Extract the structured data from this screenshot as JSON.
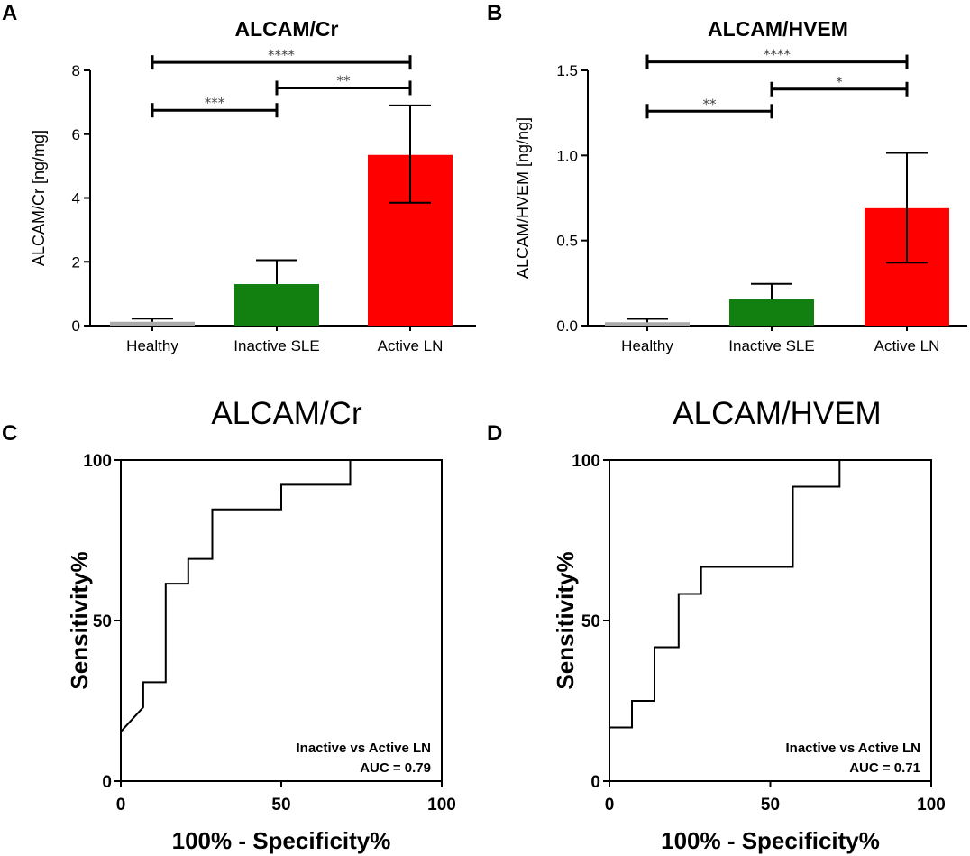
{
  "chart_data": [
    {
      "panel": "A",
      "type": "bar",
      "title": "ALCAM/Cr",
      "xlabel": "",
      "ylabel": "ALCAM/Cr [ng/mg]",
      "ylim": [
        0,
        8
      ],
      "yticks": [
        0,
        2,
        4,
        6,
        8
      ],
      "ytick_labels": [
        "0",
        "2",
        "4",
        "6",
        "8"
      ],
      "categories": [
        "Healthy",
        "Inactive SLE",
        "Active LN"
      ],
      "values": [
        0.12,
        1.3,
        5.35
      ],
      "error_upper": [
        0.22,
        2.05,
        6.9
      ],
      "error_lower": [
        0.12,
        1.3,
        3.85
      ],
      "colors": [
        "#aaaaaa",
        "#118011",
        "#ff0000"
      ],
      "significance": [
        {
          "from": 0,
          "to": 2,
          "y": 8.25,
          "label": "****"
        },
        {
          "from": 1,
          "to": 2,
          "y": 7.45,
          "label": "**"
        },
        {
          "from": 0,
          "to": 1,
          "y": 6.75,
          "label": "***"
        }
      ]
    },
    {
      "panel": "B",
      "type": "bar",
      "title": "ALCAM/HVEM",
      "xlabel": "",
      "ylabel": "ALCAM/HVEM [ng/ng]",
      "ylim": [
        0,
        1.5
      ],
      "yticks": [
        0,
        0.5,
        1.0,
        1.5
      ],
      "ytick_labels": [
        "0.0",
        "0.5",
        "1.0",
        "1.5"
      ],
      "categories": [
        "Healthy",
        "Inactive SLE",
        "Active LN"
      ],
      "values": [
        0.02,
        0.155,
        0.69
      ],
      "error_upper": [
        0.04,
        0.245,
        1.015
      ],
      "error_lower": [
        0.02,
        0.155,
        0.37
      ],
      "colors": [
        "#aaaaaa",
        "#118011",
        "#ff0000"
      ],
      "significance": [
        {
          "from": 0,
          "to": 2,
          "y": 1.55,
          "label": "****"
        },
        {
          "from": 1,
          "to": 2,
          "y": 1.39,
          "label": "*"
        },
        {
          "from": 0,
          "to": 1,
          "y": 1.26,
          "label": "**"
        }
      ]
    },
    {
      "panel": "C",
      "type": "line",
      "title": "ALCAM/Cr",
      "xlabel": "100% - Specificity%",
      "ylabel": "Sensitivity%",
      "xlim": [
        0,
        100
      ],
      "ylim": [
        0,
        100
      ],
      "xticks": [
        0,
        50,
        100
      ],
      "xtick_labels": [
        "0",
        "50",
        "100"
      ],
      "yticks": [
        0,
        50,
        100
      ],
      "ytick_labels": [
        "0",
        "50",
        "100"
      ],
      "series": [
        {
          "name": "ROC",
          "x": [
            0,
            7,
            7,
            14,
            14,
            21,
            21,
            28.5,
            28.5,
            50,
            50,
            71.5,
            71.5
          ],
          "y": [
            15.4,
            23,
            30.8,
            30.8,
            61.5,
            61.5,
            69.2,
            69.2,
            84.6,
            84.6,
            92.3,
            92.3,
            100
          ]
        }
      ],
      "annotations": [
        "Inactive vs   Active LN",
        "AUC = 0.79"
      ]
    },
    {
      "panel": "D",
      "type": "line",
      "title": "ALCAM/HVEM",
      "xlabel": "100% - Specificity%",
      "ylabel": "Sensitivity%",
      "xlim": [
        0,
        100
      ],
      "ylim": [
        0,
        100
      ],
      "xticks": [
        0,
        50,
        100
      ],
      "xtick_labels": [
        "0",
        "50",
        "100"
      ],
      "yticks": [
        0,
        50,
        100
      ],
      "ytick_labels": [
        "0",
        "50",
        "100"
      ],
      "series": [
        {
          "name": "ROC",
          "x": [
            0,
            7,
            7,
            14,
            14,
            21.5,
            21.5,
            28.5,
            28.5,
            57,
            57,
            71.5,
            71.5
          ],
          "y": [
            16.7,
            16.7,
            25,
            25,
            41.7,
            41.7,
            58.3,
            58.3,
            66.7,
            66.7,
            91.7,
            91.7,
            100
          ]
        }
      ],
      "annotations": [
        "Inactive vs   Active LN",
        "AUC = 0.71"
      ]
    }
  ]
}
